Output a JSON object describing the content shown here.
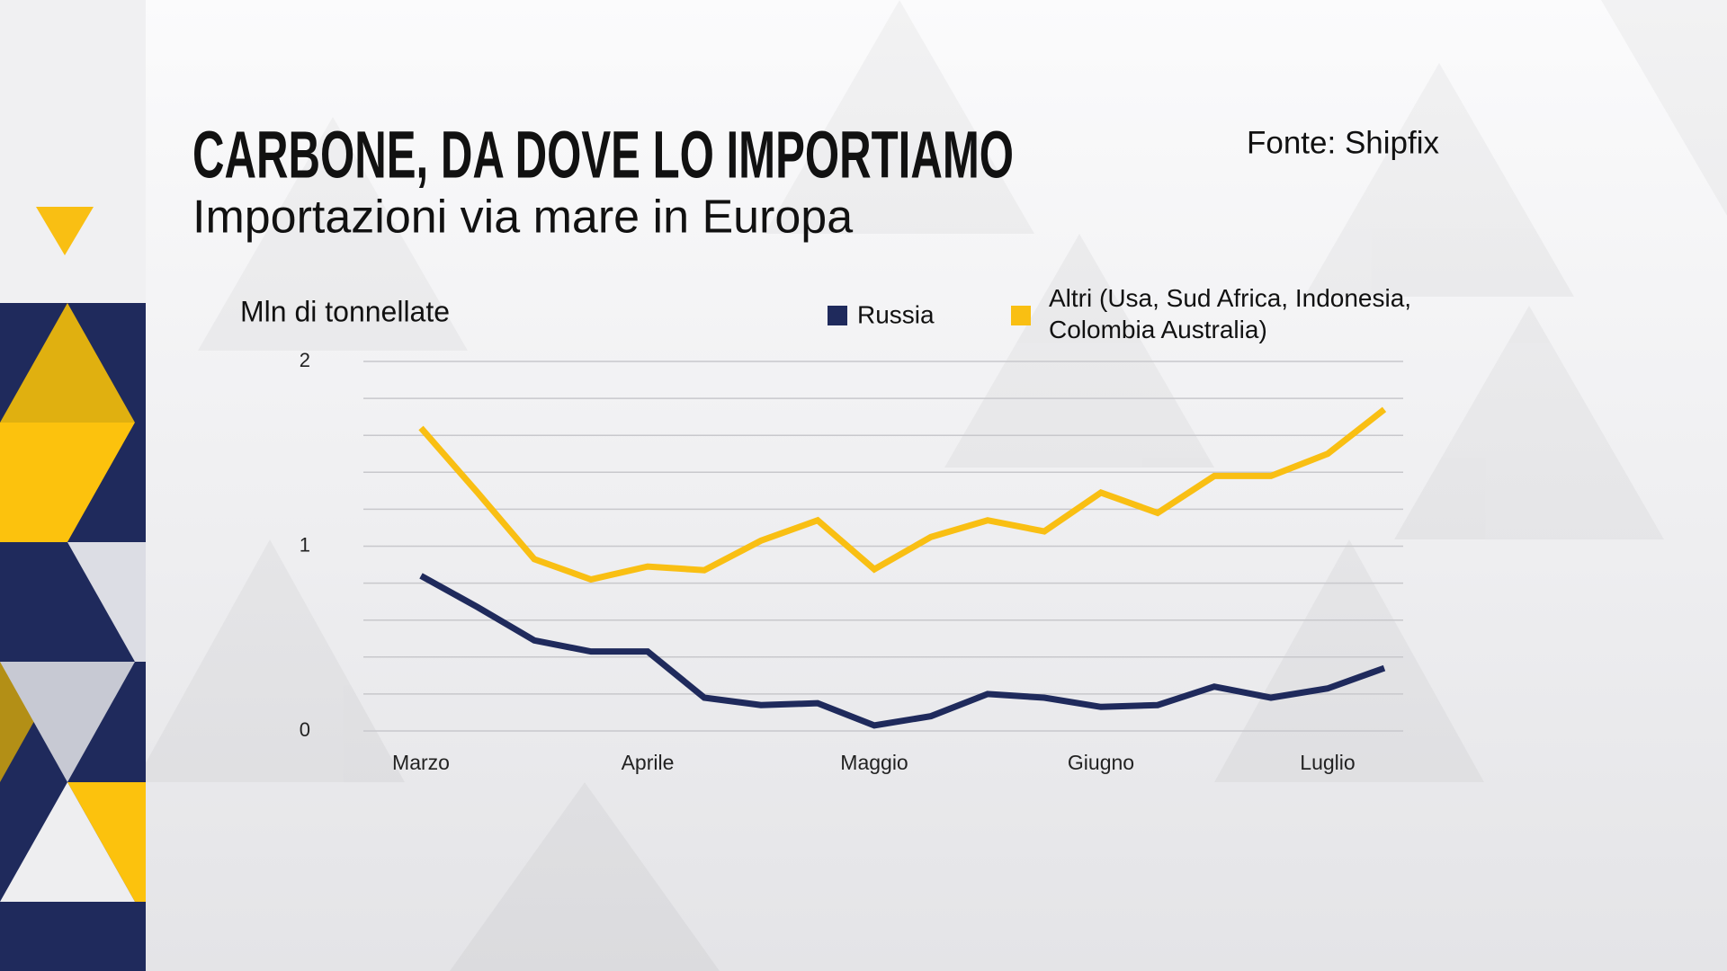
{
  "chart_data": {
    "type": "line",
    "title": "CARBONE, DA DOVE LO IMPORTIAMO",
    "subtitle": "Importazioni via mare in Europa",
    "source": "Fonte: Shipfix",
    "y_label": "Mln di tonnellate",
    "categories": [
      "Marzo",
      null,
      null,
      null,
      "Aprile",
      null,
      null,
      null,
      "Maggio",
      null,
      null,
      null,
      "Giugno",
      null,
      null,
      null,
      "Luglio",
      null
    ],
    "series": [
      {
        "name": "Russia",
        "color": "#1f2a5c",
        "values": [
          0.84,
          0.67,
          0.49,
          0.43,
          0.43,
          0.18,
          0.14,
          0.15,
          0.03,
          0.08,
          0.2,
          0.18,
          0.13,
          0.14,
          0.24,
          0.18,
          0.23,
          0.34
        ]
      },
      {
        "name": "Altri (Usa, Sud Africa, Indonesia, Colombia Australia)",
        "color": "#f9bf13",
        "values": [
          1.64,
          1.29,
          0.93,
          0.82,
          0.89,
          0.87,
          1.03,
          1.14,
          0.875,
          1.05,
          1.14,
          1.08,
          1.29,
          1.18,
          1.38,
          1.38,
          1.5,
          1.74
        ]
      }
    ],
    "ylim": [
      0,
      2
    ],
    "yticks": [
      0,
      1,
      2
    ],
    "y_minor_ticks": [
      0.2,
      0.4,
      0.6,
      0.8,
      1.2,
      1.4,
      1.6,
      1.8
    ],
    "grid": true
  }
}
